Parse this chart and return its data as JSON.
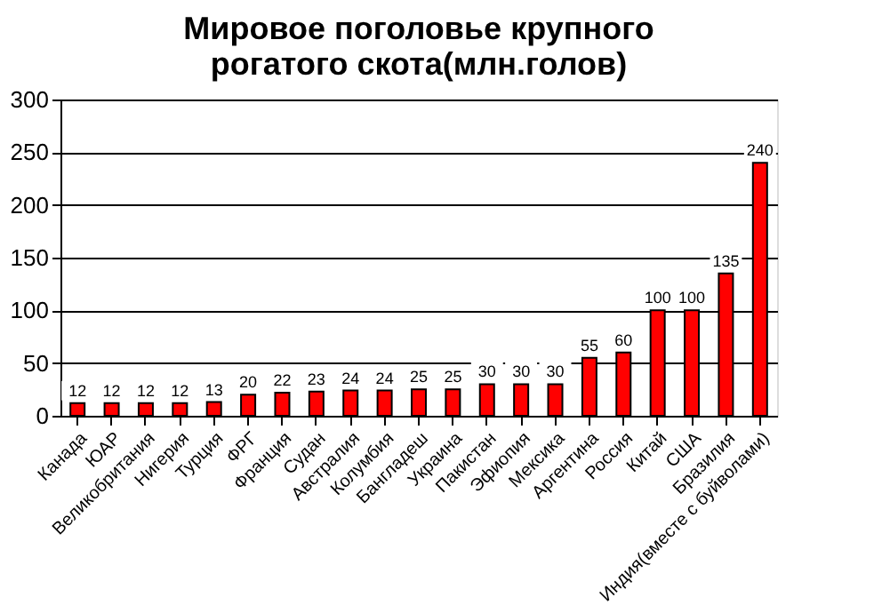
{
  "chart_data": {
    "type": "bar",
    "title": "Мировое поголовье крупного\nрогатого скота(млн.голов)",
    "categories": [
      "Канада",
      "ЮАР",
      "Великобритания",
      "Нигерия",
      "Турция",
      "ФРГ",
      "Франция",
      "Судан",
      "Австралия",
      "Колумбия",
      "Бангладеш",
      "Украина",
      "Пакистан",
      "Эфиопия",
      "Мексика",
      "Аргентина",
      "Россия",
      "Китай",
      "США",
      "Бразилия",
      "Индия(вместе с буйволами)"
    ],
    "values": [
      12,
      12,
      12,
      12,
      13,
      20,
      22,
      23,
      24,
      24,
      25,
      25,
      30,
      30,
      30,
      55,
      60,
      100,
      100,
      135,
      240
    ],
    "color": "#ff0000",
    "ylim": [
      0,
      300
    ],
    "yticks": [
      0,
      50,
      100,
      150,
      200,
      250,
      300
    ],
    "grid": "y",
    "data_labels": true
  }
}
